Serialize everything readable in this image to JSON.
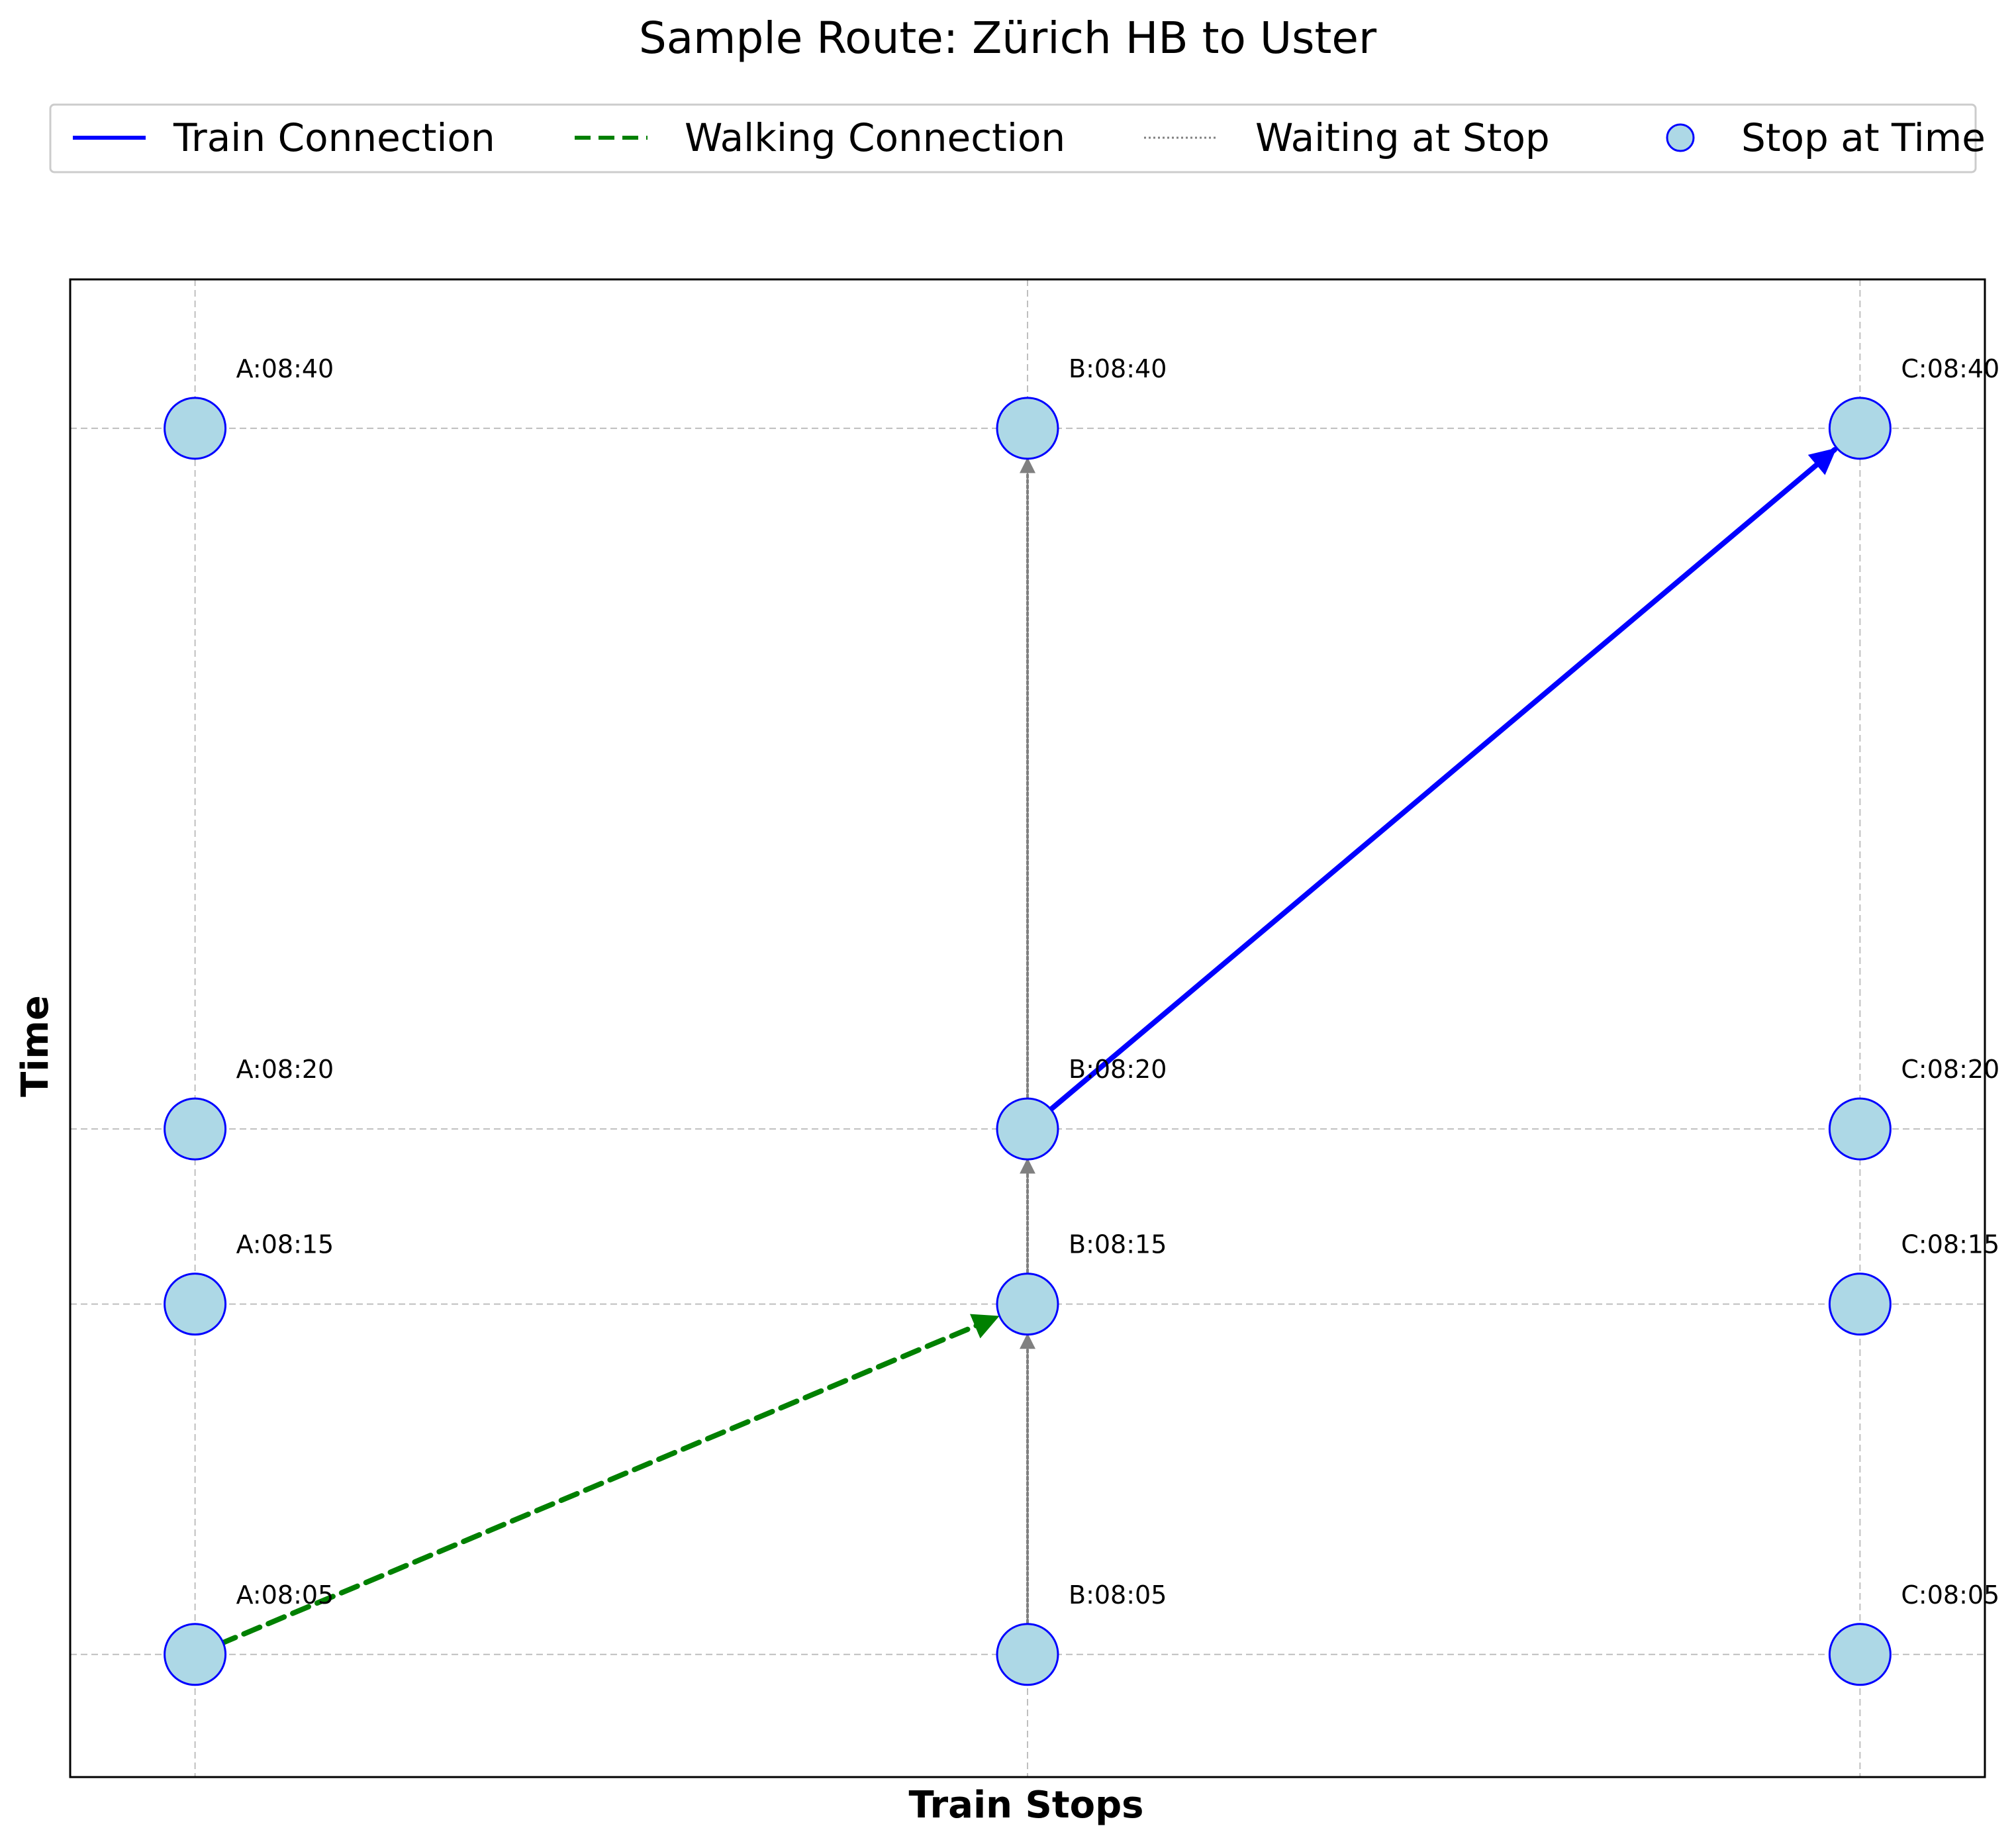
{
  "chart_data": {
    "type": "scatter",
    "title": "Sample Route: Zürich HB to Uster",
    "xlabel": "Train Stops",
    "ylabel": "Time",
    "grid": true,
    "legend_placement": "top-center, outside plot",
    "stops": [
      "A",
      "B",
      "C"
    ],
    "times": [
      "08:05",
      "08:15",
      "08:20",
      "08:40"
    ],
    "time_minutes": [
      485,
      495,
      500,
      520
    ],
    "ylim_minutes": [
      481.5,
      524.25
    ],
    "xlim": [
      -0.15,
      2.15
    ],
    "legend": [
      {
        "label": "Train Connection",
        "style": "solid",
        "color": "#0000ff"
      },
      {
        "label": "Walking Connection",
        "style": "dashed",
        "color": "#008000"
      },
      {
        "label": "Waiting at Stop",
        "style": "dotted",
        "color": "#808080"
      },
      {
        "label": "Stop at Time",
        "style": "marker",
        "color": "#add8e6",
        "edge": "#0000ff"
      }
    ],
    "points": [
      {
        "stop": "A",
        "time": "08:05",
        "label": "A:08:05"
      },
      {
        "stop": "A",
        "time": "08:15",
        "label": "A:08:15"
      },
      {
        "stop": "A",
        "time": "08:20",
        "label": "A:08:20"
      },
      {
        "stop": "A",
        "time": "08:40",
        "label": "A:08:40"
      },
      {
        "stop": "B",
        "time": "08:05",
        "label": "B:08:05"
      },
      {
        "stop": "B",
        "time": "08:15",
        "label": "B:08:15"
      },
      {
        "stop": "B",
        "time": "08:20",
        "label": "B:08:20"
      },
      {
        "stop": "B",
        "time": "08:40",
        "label": "B:08:40"
      },
      {
        "stop": "C",
        "time": "08:05",
        "label": "C:08:05"
      },
      {
        "stop": "C",
        "time": "08:15",
        "label": "C:08:15"
      },
      {
        "stop": "C",
        "time": "08:20",
        "label": "C:08:20"
      },
      {
        "stop": "C",
        "time": "08:40",
        "label": "C:08:40"
      }
    ],
    "connections": [
      {
        "type": "walking",
        "from": {
          "stop": "A",
          "time": "08:05"
        },
        "to": {
          "stop": "B",
          "time": "08:15"
        }
      },
      {
        "type": "waiting",
        "from": {
          "stop": "B",
          "time": "08:05"
        },
        "to": {
          "stop": "B",
          "time": "08:15"
        }
      },
      {
        "type": "waiting",
        "from": {
          "stop": "B",
          "time": "08:15"
        },
        "to": {
          "stop": "B",
          "time": "08:20"
        }
      },
      {
        "type": "waiting",
        "from": {
          "stop": "B",
          "time": "08:20"
        },
        "to": {
          "stop": "B",
          "time": "08:40"
        }
      },
      {
        "type": "train",
        "from": {
          "stop": "B",
          "time": "08:20"
        },
        "to": {
          "stop": "C",
          "time": "08:40"
        }
      }
    ],
    "colors": {
      "train": "#0000ff",
      "walking": "#008000",
      "waiting": "#808080",
      "marker_fill": "#add8e6",
      "marker_edge": "#0000ff",
      "grid": "#bfbfbf"
    }
  }
}
